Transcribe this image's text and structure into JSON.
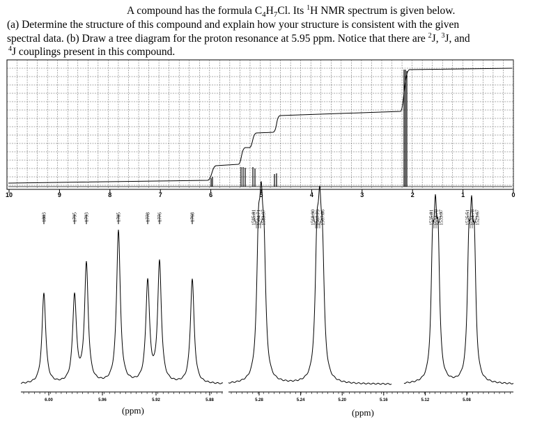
{
  "question": {
    "lines": [
      [
        "A compound has the formula C",
        "4",
        "H",
        "7",
        "Cl. Its ",
        "1",
        "H NMR spectrum is given below."
      ],
      [
        "(a) Determine the structure of this compound and explain how your structure is consistent with the given"
      ],
      [
        "spectral data. (b) Draw a tree diagram for the proton resonance at 5.95 ppm. Notice that there are ",
        "2",
        "J, ",
        "3",
        "J, and"
      ],
      [
        "4",
        "J couplings present in this compound."
      ]
    ]
  },
  "spectrum": {
    "axis_ticks": [
      10,
      9,
      8,
      7,
      6,
      5,
      4,
      3,
      2,
      1,
      0
    ]
  },
  "expansion_left": {
    "peak_labels": [
      "1803",
      "1795",
      "1793",
      "1785",
      "1778",
      "1776",
      "1768"
    ],
    "axis_ticks": [
      "6.00",
      "5.96",
      "5.92",
      "5.88"
    ],
    "axis_label": "(ppm)"
  },
  "expansion_right": {
    "peak_labels": [
      "1585.81",
      "1584.71",
      "1583.97",
      "1568.90",
      "1567.79",
      "1567.06",
      "1535.81",
      "1534.70",
      "1533.97",
      "1525.51",
      "1524.78",
      "1523.67"
    ],
    "axis_ticks": [
      "5.28",
      "5.24",
      "5.20",
      "5.16",
      "5.12",
      "5.08"
    ],
    "axis_label": "(ppm)"
  }
}
